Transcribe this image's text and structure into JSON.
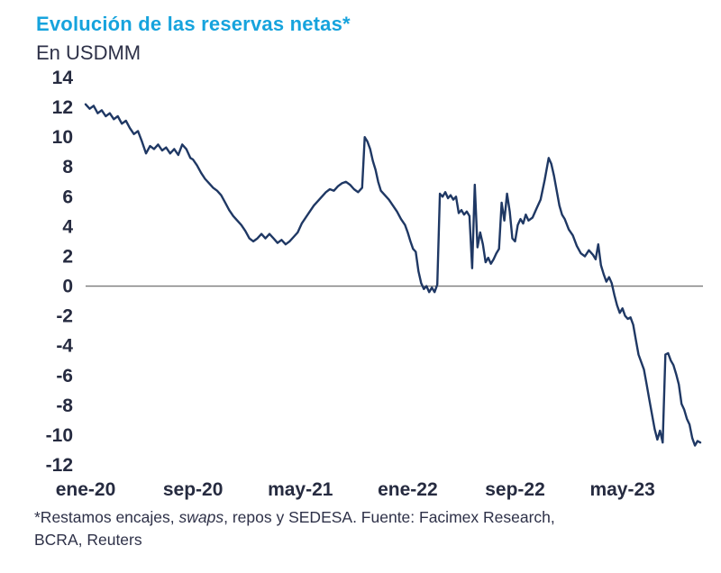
{
  "header": {
    "title": "Evolución de las reservas netas*",
    "subtitle": "En USDMM"
  },
  "colors": {
    "title": "#16a3dd",
    "line": "#1f3864",
    "zero_line": "#7a7a7a",
    "text": "#2e3148"
  },
  "footnote": {
    "line1_parts": [
      {
        "text": "*Restamos encajes, "
      },
      {
        "text": "swaps",
        "italic": true
      },
      {
        "text": ", repos y SEDESA. Fuente: Facimex Research,"
      }
    ],
    "line2": "BCRA, Reuters"
  },
  "chart_data": {
    "type": "line",
    "title": "Evolución de las reservas netas*",
    "ylabel": "En USDMM",
    "ylim": [
      -12,
      14
    ],
    "ytick_step": 2,
    "xlim": [
      0,
      46
    ],
    "x_unit": "months since ene-20",
    "grid": false,
    "zero_line": true,
    "legend": "none",
    "xticks": [
      {
        "x": 0,
        "label": "ene-20"
      },
      {
        "x": 8,
        "label": "sep-20"
      },
      {
        "x": 16,
        "label": "may-21"
      },
      {
        "x": 24,
        "label": "ene-22"
      },
      {
        "x": 32,
        "label": "sep-22"
      },
      {
        "x": 40,
        "label": "may-23"
      }
    ],
    "series": [
      {
        "name": "Reservas netas (USDMM)",
        "points": [
          [
            0,
            12.2
          ],
          [
            0.3,
            11.9
          ],
          [
            0.6,
            12.1
          ],
          [
            0.9,
            11.6
          ],
          [
            1.2,
            11.8
          ],
          [
            1.5,
            11.4
          ],
          [
            1.8,
            11.6
          ],
          [
            2.1,
            11.2
          ],
          [
            2.4,
            11.4
          ],
          [
            2.7,
            10.9
          ],
          [
            3.0,
            11.1
          ],
          [
            3.3,
            10.6
          ],
          [
            3.6,
            10.2
          ],
          [
            3.9,
            10.4
          ],
          [
            4.2,
            9.7
          ],
          [
            4.5,
            8.9
          ],
          [
            4.8,
            9.4
          ],
          [
            5.1,
            9.2
          ],
          [
            5.4,
            9.5
          ],
          [
            5.7,
            9.1
          ],
          [
            6.0,
            9.3
          ],
          [
            6.3,
            8.9
          ],
          [
            6.6,
            9.2
          ],
          [
            6.9,
            8.8
          ],
          [
            7.2,
            9.5
          ],
          [
            7.5,
            9.2
          ],
          [
            7.8,
            8.6
          ],
          [
            8.0,
            8.5
          ],
          [
            8.3,
            8.1
          ],
          [
            8.6,
            7.6
          ],
          [
            8.9,
            7.2
          ],
          [
            9.2,
            6.9
          ],
          [
            9.5,
            6.6
          ],
          [
            9.8,
            6.4
          ],
          [
            10.1,
            6.1
          ],
          [
            10.4,
            5.6
          ],
          [
            10.7,
            5.1
          ],
          [
            11.0,
            4.7
          ],
          [
            11.3,
            4.4
          ],
          [
            11.6,
            4.1
          ],
          [
            11.9,
            3.7
          ],
          [
            12.2,
            3.2
          ],
          [
            12.5,
            3.0
          ],
          [
            12.8,
            3.2
          ],
          [
            13.1,
            3.5
          ],
          [
            13.4,
            3.2
          ],
          [
            13.7,
            3.5
          ],
          [
            14.0,
            3.2
          ],
          [
            14.3,
            2.9
          ],
          [
            14.6,
            3.1
          ],
          [
            14.9,
            2.8
          ],
          [
            15.2,
            3.0
          ],
          [
            15.5,
            3.3
          ],
          [
            15.8,
            3.6
          ],
          [
            16.1,
            4.2
          ],
          [
            16.4,
            4.6
          ],
          [
            16.7,
            5.0
          ],
          [
            17.0,
            5.4
          ],
          [
            17.3,
            5.7
          ],
          [
            17.6,
            6.0
          ],
          [
            17.9,
            6.3
          ],
          [
            18.2,
            6.5
          ],
          [
            18.5,
            6.4
          ],
          [
            18.8,
            6.7
          ],
          [
            19.1,
            6.9
          ],
          [
            19.4,
            7.0
          ],
          [
            19.7,
            6.8
          ],
          [
            20.0,
            6.5
          ],
          [
            20.3,
            6.3
          ],
          [
            20.6,
            6.6
          ],
          [
            20.8,
            10.0
          ],
          [
            21.0,
            9.7
          ],
          [
            21.2,
            9.2
          ],
          [
            21.4,
            8.4
          ],
          [
            21.6,
            7.8
          ],
          [
            21.8,
            7.0
          ],
          [
            22.0,
            6.4
          ],
          [
            22.3,
            6.1
          ],
          [
            22.6,
            5.8
          ],
          [
            22.9,
            5.4
          ],
          [
            23.2,
            5.0
          ],
          [
            23.5,
            4.5
          ],
          [
            23.8,
            4.1
          ],
          [
            24.0,
            3.6
          ],
          [
            24.2,
            3.0
          ],
          [
            24.4,
            2.5
          ],
          [
            24.6,
            2.3
          ],
          [
            24.8,
            1.0
          ],
          [
            25.0,
            0.2
          ],
          [
            25.2,
            -0.2
          ],
          [
            25.4,
            0.0
          ],
          [
            25.6,
            -0.4
          ],
          [
            25.8,
            -0.1
          ],
          [
            26.0,
            -0.4
          ],
          [
            26.2,
            0.1
          ],
          [
            26.4,
            6.2
          ],
          [
            26.6,
            6.0
          ],
          [
            26.8,
            6.3
          ],
          [
            27.0,
            5.9
          ],
          [
            27.2,
            6.1
          ],
          [
            27.4,
            5.8
          ],
          [
            27.6,
            6.0
          ],
          [
            27.8,
            4.9
          ],
          [
            28.0,
            5.1
          ],
          [
            28.2,
            4.8
          ],
          [
            28.4,
            5.0
          ],
          [
            28.6,
            4.7
          ],
          [
            28.8,
            1.2
          ],
          [
            29.0,
            6.8
          ],
          [
            29.2,
            2.6
          ],
          [
            29.4,
            3.6
          ],
          [
            29.6,
            2.8
          ],
          [
            29.8,
            1.6
          ],
          [
            30.0,
            1.9
          ],
          [
            30.2,
            1.5
          ],
          [
            30.4,
            1.8
          ],
          [
            30.6,
            2.2
          ],
          [
            30.8,
            2.5
          ],
          [
            31.0,
            5.6
          ],
          [
            31.2,
            4.4
          ],
          [
            31.4,
            6.2
          ],
          [
            31.6,
            5.0
          ],
          [
            31.8,
            3.2
          ],
          [
            32.0,
            3.0
          ],
          [
            32.2,
            4.1
          ],
          [
            32.4,
            4.5
          ],
          [
            32.6,
            4.2
          ],
          [
            32.8,
            4.8
          ],
          [
            33.0,
            4.4
          ],
          [
            33.3,
            4.6
          ],
          [
            33.6,
            5.2
          ],
          [
            33.9,
            5.8
          ],
          [
            34.2,
            7.1
          ],
          [
            34.5,
            8.6
          ],
          [
            34.7,
            8.2
          ],
          [
            34.9,
            7.4
          ],
          [
            35.1,
            6.4
          ],
          [
            35.3,
            5.4
          ],
          [
            35.5,
            4.8
          ],
          [
            35.7,
            4.5
          ],
          [
            36.0,
            3.8
          ],
          [
            36.3,
            3.4
          ],
          [
            36.6,
            2.7
          ],
          [
            36.9,
            2.2
          ],
          [
            37.2,
            2.0
          ],
          [
            37.5,
            2.4
          ],
          [
            37.8,
            2.1
          ],
          [
            38.0,
            1.8
          ],
          [
            38.2,
            2.8
          ],
          [
            38.4,
            1.4
          ],
          [
            38.6,
            0.8
          ],
          [
            38.8,
            0.3
          ],
          [
            39.0,
            0.6
          ],
          [
            39.2,
            0.2
          ],
          [
            39.4,
            -0.6
          ],
          [
            39.6,
            -1.3
          ],
          [
            39.8,
            -1.8
          ],
          [
            40.0,
            -1.5
          ],
          [
            40.2,
            -2.0
          ],
          [
            40.4,
            -2.2
          ],
          [
            40.6,
            -2.1
          ],
          [
            40.8,
            -2.6
          ],
          [
            41.0,
            -3.6
          ],
          [
            41.2,
            -4.6
          ],
          [
            41.4,
            -5.1
          ],
          [
            41.6,
            -5.6
          ],
          [
            41.8,
            -6.6
          ],
          [
            42.0,
            -7.6
          ],
          [
            42.2,
            -8.6
          ],
          [
            42.4,
            -9.6
          ],
          [
            42.6,
            -10.3
          ],
          [
            42.8,
            -9.7
          ],
          [
            43.0,
            -10.5
          ],
          [
            43.2,
            -4.6
          ],
          [
            43.4,
            -4.5
          ],
          [
            43.6,
            -5.0
          ],
          [
            43.8,
            -5.3
          ],
          [
            44.0,
            -5.9
          ],
          [
            44.2,
            -6.6
          ],
          [
            44.4,
            -7.9
          ],
          [
            44.6,
            -8.3
          ],
          [
            44.8,
            -8.9
          ],
          [
            45.0,
            -9.3
          ],
          [
            45.2,
            -10.2
          ],
          [
            45.4,
            -10.7
          ],
          [
            45.6,
            -10.4
          ],
          [
            45.8,
            -10.5
          ]
        ]
      }
    ]
  }
}
